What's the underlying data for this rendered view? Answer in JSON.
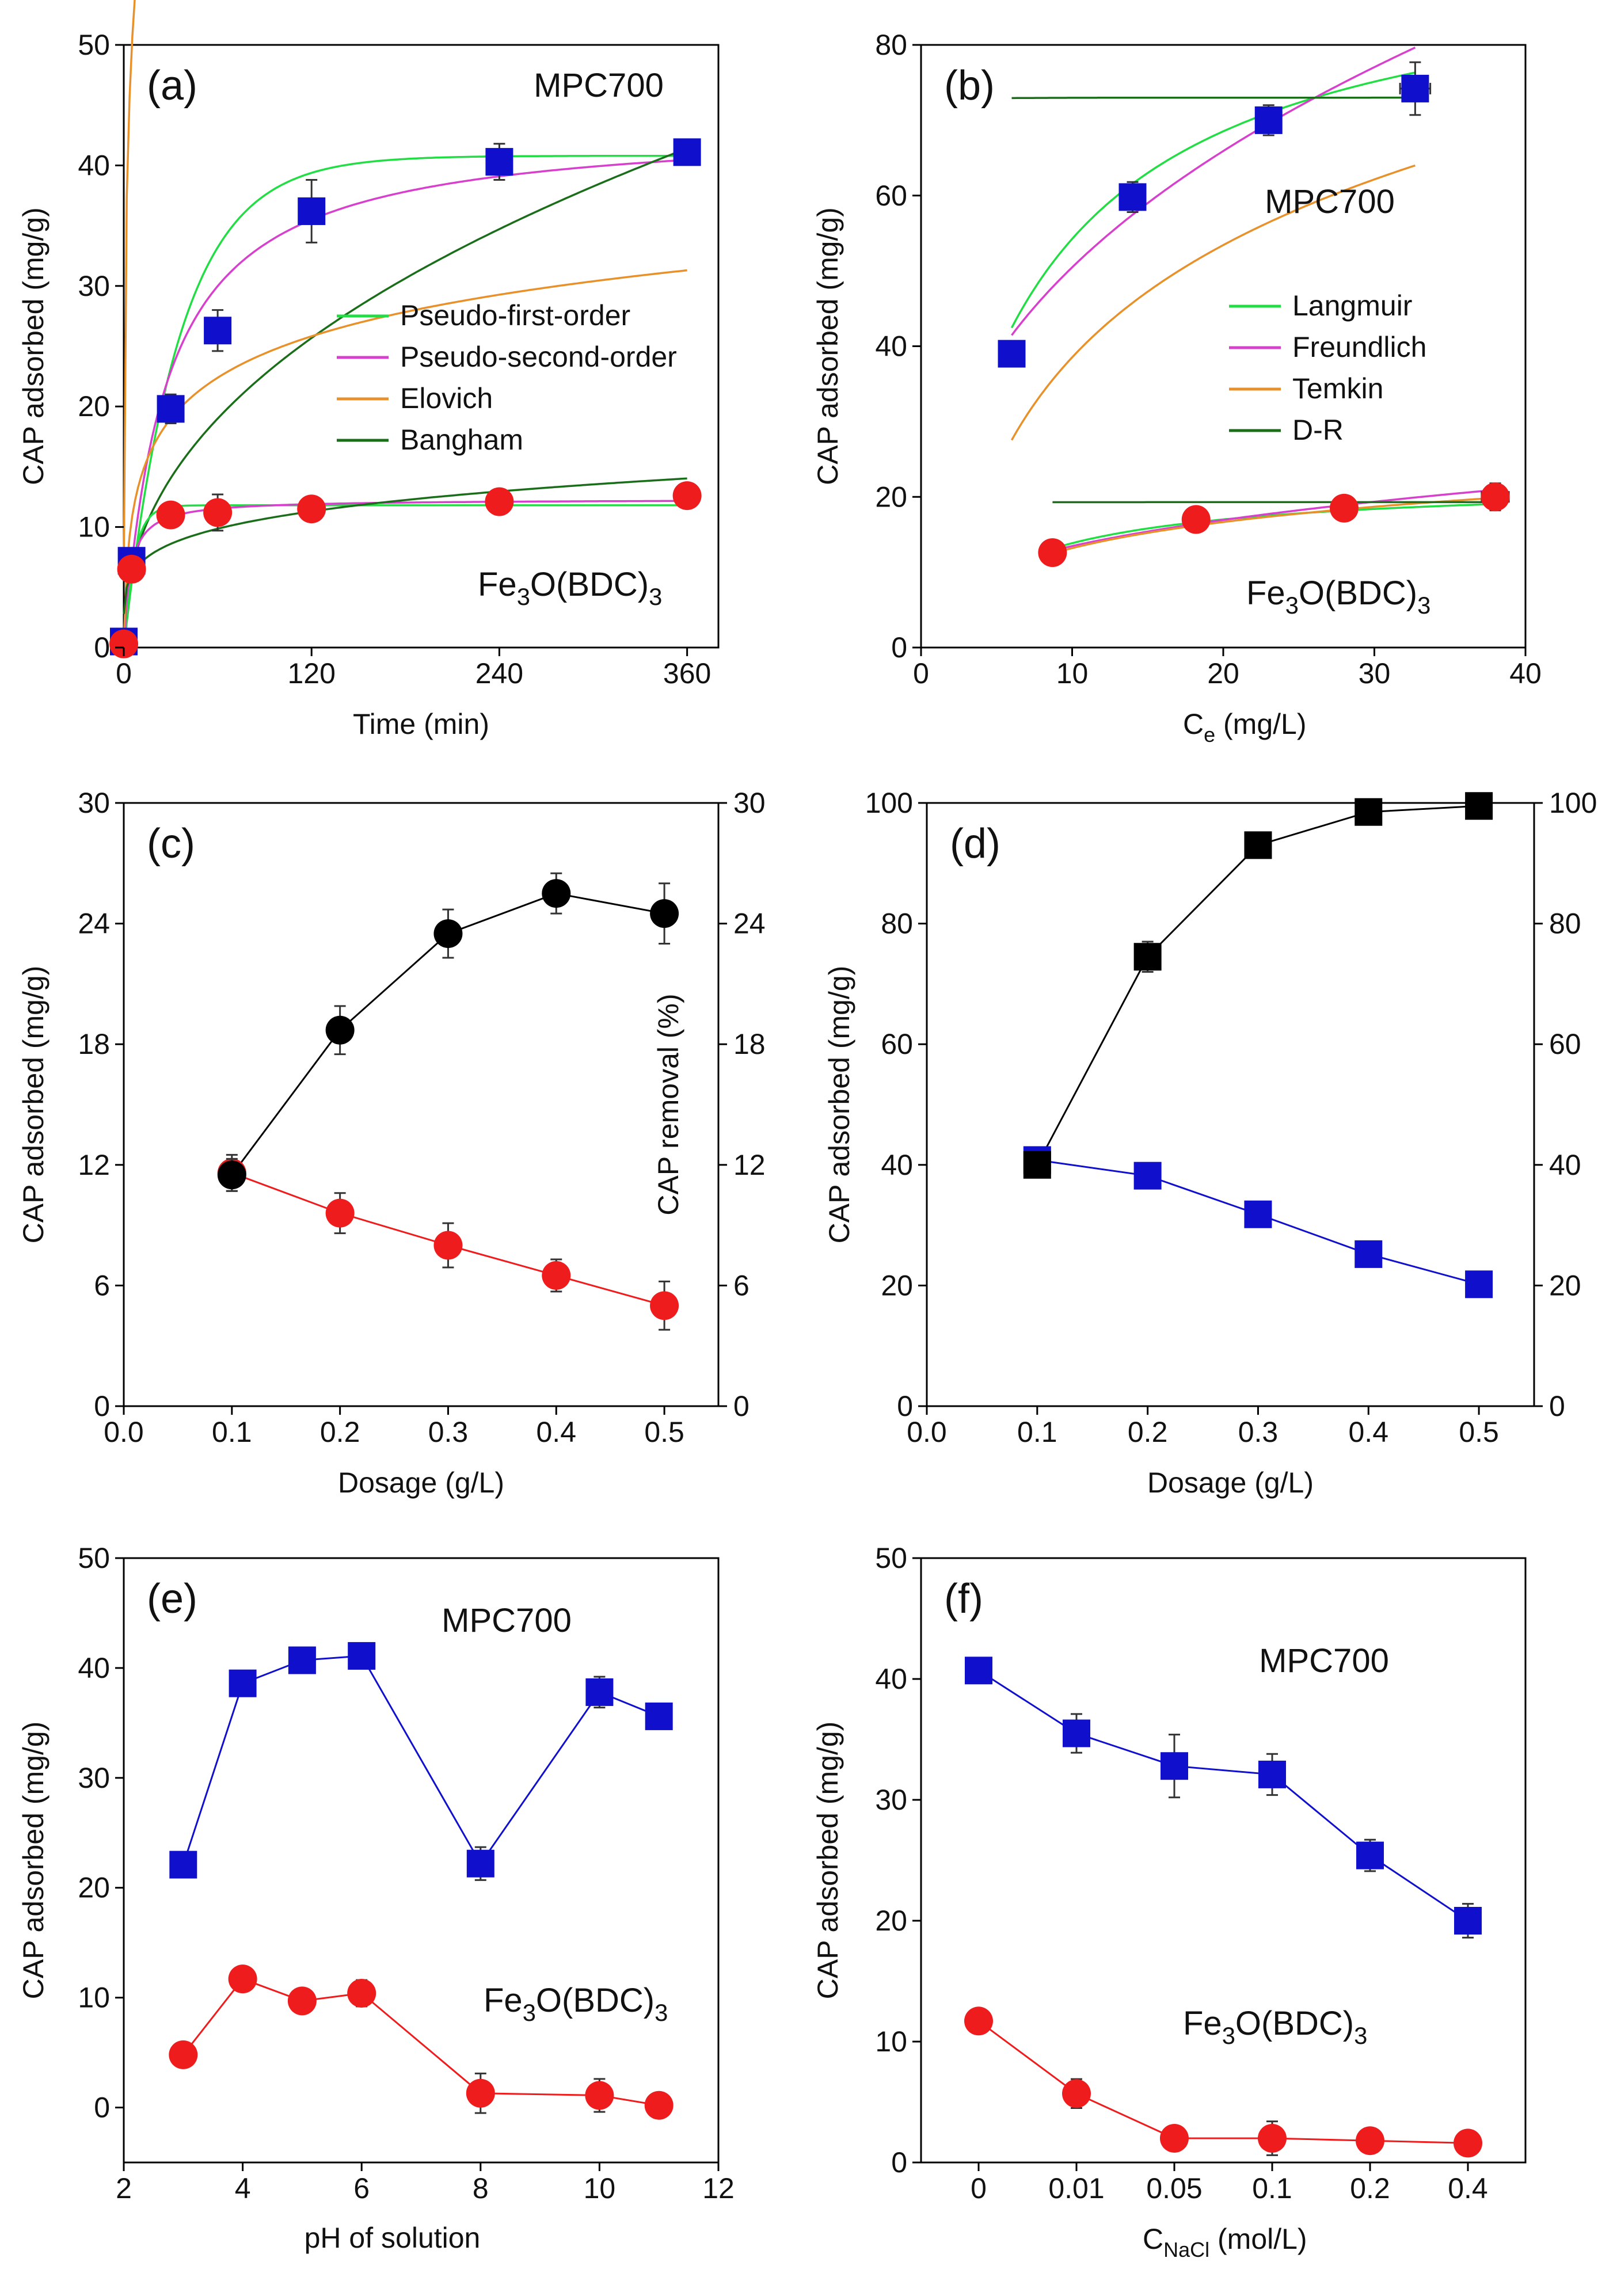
{
  "colors": {
    "red": "#ee1c1c",
    "blue": "#1010cc",
    "black": "#000000",
    "errorbar": "#333333",
    "pfo": "#22dd44",
    "pso": "#d640cc",
    "elovich": "#e8912a",
    "bangham": "#1a6e1a",
    "langmuir": "#22dd44",
    "freundlich": "#d640cc",
    "temkin": "#e8912a",
    "dr": "#1a6e1a"
  },
  "chart_data": [
    {
      "panel": "(a)",
      "type": "scatter",
      "xlabel": "Time (min)",
      "ylabel": "CAP adsorbed (mg/g)",
      "xlim": [
        0,
        380
      ],
      "ylim": [
        0,
        50
      ],
      "xticks": [
        0,
        120,
        240,
        360
      ],
      "yticks": [
        0,
        10,
        20,
        30,
        40,
        50
      ],
      "annotations": {
        "mpc": "MPC700",
        "fe_main": "Fe",
        "fe_sub1": "3",
        "fe_mid": "O(BDC)",
        "fe_sub2": "3"
      },
      "legend": [
        "Pseudo-first-order",
        "Pseudo-second-order",
        "Elovich",
        "Bangham"
      ],
      "series": [
        {
          "name": "MPC700",
          "marker": "square",
          "color": "blue",
          "x": [
            0,
            5,
            30,
            60,
            120,
            240,
            360
          ],
          "y": [
            0.5,
            7.2,
            19.8,
            26.3,
            36.2,
            40.3,
            41.1
          ],
          "err": [
            0.3,
            0.8,
            1.2,
            1.7,
            2.6,
            1.5,
            0.8
          ]
        },
        {
          "name": "Fe3O(BDC)3",
          "marker": "circle",
          "color": "red",
          "x": [
            0,
            5,
            30,
            60,
            120,
            240,
            360
          ],
          "y": [
            0.3,
            6.5,
            11.0,
            11.2,
            11.5,
            12.1,
            12.6
          ],
          "err": [
            0.2,
            0.6,
            1.0,
            1.5,
            0.8,
            0.6,
            0.5
          ]
        }
      ],
      "fits": [
        {
          "name": "Pseudo-first-order",
          "color": "pfo",
          "model": "pfo",
          "curve": "MPC700",
          "p": [
            40.8,
            0.028
          ]
        },
        {
          "name": "Pseudo-second-order",
          "color": "pso",
          "model": "pso",
          "curve": "MPC700",
          "p": [
            43.5,
            0.00085
          ]
        },
        {
          "name": "Elovich",
          "color": "elovich",
          "model": "elovich",
          "curve": "MPC700",
          "p": [
            13.0,
            8.8
          ]
        },
        {
          "name": "Bangham",
          "color": "bangham",
          "model": "bangham",
          "curve": "MPC700",
          "p": [
            3.2,
            0.435
          ]
        },
        {
          "name": "Pseudo-first-order",
          "color": "pfo",
          "model": "pfo",
          "curve": "Fe3O(BDC)3",
          "p": [
            11.8,
            0.15
          ]
        },
        {
          "name": "Pseudo-second-order",
          "color": "pso",
          "model": "pso",
          "curve": "Fe3O(BDC)3",
          "p": [
            12.3,
            0.02
          ]
        },
        {
          "name": "Elovich",
          "color": "elovich",
          "model": "elovich",
          "curve": "Fe3O(BDC)3",
          "p": [
            5.0,
            1.45
          ]
        },
        {
          "name": "Bangham",
          "color": "bangham",
          "model": "bangham",
          "curve": "Fe3O(BDC)3",
          "p": [
            4.4,
            0.197
          ]
        }
      ]
    },
    {
      "panel": "(b)",
      "type": "scatter",
      "xlabel_main": "C",
      "xlabel_sub": "e",
      "xlabel_rest": " (mg/L)",
      "ylabel": "CAP adsorbed (mg/g)",
      "xlim": [
        0,
        40
      ],
      "ylim": [
        0,
        80
      ],
      "xticks": [
        0,
        10,
        20,
        30,
        40
      ],
      "yticks": [
        0,
        20,
        40,
        60,
        80
      ],
      "annotations": {
        "mpc": "MPC700",
        "fe_main": "Fe",
        "fe_sub1": "3",
        "fe_mid": "O(BDC)",
        "fe_sub2": "3"
      },
      "legend": [
        "Langmuir",
        "Freundlich",
        "Temkin",
        "D-R"
      ],
      "series": [
        {
          "name": "MPC700",
          "marker": "square",
          "color": "blue",
          "x": [
            6.0,
            14.0,
            23.0,
            32.7
          ],
          "y": [
            39.0,
            59.8,
            70.0,
            74.2
          ],
          "err": [
            1.0,
            2.0,
            2.0,
            3.5
          ],
          "xerr": [
            0.6,
            0.8,
            0.7,
            1.0
          ]
        },
        {
          "name": "Fe3O(BDC)3",
          "marker": "circle",
          "color": "red",
          "x": [
            8.7,
            18.2,
            28.0,
            38.0
          ],
          "y": [
            12.6,
            17.0,
            18.5,
            20.0
          ],
          "err": [
            0.5,
            0.6,
            0.8,
            1.8
          ],
          "xerr": [
            0.5,
            0.5,
            0.6,
            0.9
          ]
        }
      ],
      "fits": [
        {
          "name": "Langmuir",
          "color": "langmuir",
          "model": "langmuir",
          "curve": "MPC700",
          "xr": [
            6.0,
            32.7
          ],
          "p": [
            93.0,
            0.14
          ]
        },
        {
          "name": "Freundlich",
          "color": "freundlich",
          "model": "freundlich",
          "curve": "MPC700",
          "xr": [
            6.0,
            32.7
          ],
          "p": [
            20.8,
            0.385
          ]
        },
        {
          "name": "Temkin",
          "color": "temkin",
          "model": "temkin",
          "curve": "MPC700",
          "xr": [
            6.0,
            32.7
          ],
          "p": [
            0.0,
            21.5,
            0.6
          ]
        },
        {
          "name": "D-R",
          "color": "dr",
          "model": "dr",
          "curve": "MPC700",
          "xr": [
            6.0,
            32.7
          ],
          "p": [
            73.0,
            0.09
          ]
        },
        {
          "name": "Langmuir",
          "color": "langmuir",
          "model": "langmuir",
          "curve": "Fe3O(BDC)3",
          "xr": [
            8.7,
            38.0
          ],
          "p": [
            22.0,
            0.17
          ]
        },
        {
          "name": "Freundlich",
          "color": "freundlich",
          "model": "freundlich",
          "curve": "Fe3O(BDC)3",
          "xr": [
            8.7,
            38.0
          ],
          "p": [
            6.3,
            0.33
          ]
        },
        {
          "name": "Temkin",
          "color": "temkin",
          "model": "temkin",
          "curve": "Fe3O(BDC)3",
          "xr": [
            8.7,
            38.0
          ],
          "p": [
            0.0,
            5.0,
            1.4
          ]
        },
        {
          "name": "D-R",
          "color": "dr",
          "model": "dr",
          "curve": "Fe3O(BDC)3",
          "xr": [
            8.7,
            38.0
          ],
          "p": [
            19.3,
            0.09
          ]
        }
      ]
    },
    {
      "panel": "(c)",
      "type": "line",
      "xlabel": "Dosage (g/L)",
      "ylabel": "CAP adsorbed (mg/g)",
      "y2label": "CAP removal (%)",
      "xlim": [
        0,
        0.55
      ],
      "ylim": [
        0,
        30
      ],
      "y2lim": [
        0,
        30
      ],
      "xticks": [
        0.0,
        0.1,
        0.2,
        0.3,
        0.4,
        0.5
      ],
      "yticks": [
        0,
        6,
        12,
        18,
        24,
        30
      ],
      "y2ticks": [
        0,
        6,
        12,
        18,
        24,
        30
      ],
      "series": [
        {
          "name": "Adsorbed",
          "marker": "circle",
          "color": "red",
          "axis": "left",
          "x": [
            0.1,
            0.2,
            0.3,
            0.4,
            0.5
          ],
          "y": [
            11.6,
            9.6,
            8.0,
            6.5,
            5.0
          ],
          "err": [
            0.9,
            1.0,
            1.1,
            0.8,
            1.2
          ]
        },
        {
          "name": "Removal",
          "marker": "circle",
          "color": "black",
          "axis": "right",
          "x": [
            0.1,
            0.2,
            0.3,
            0.4,
            0.5
          ],
          "y": [
            11.5,
            18.7,
            23.5,
            25.5,
            24.5
          ],
          "err": [
            0.8,
            1.2,
            1.2,
            1.0,
            1.5
          ]
        }
      ]
    },
    {
      "panel": "(d)",
      "type": "line",
      "xlabel": "Dosage (g/L)",
      "ylabel": "CAP adsorbed (mg/g)",
      "xlim": [
        0,
        0.55
      ],
      "ylim": [
        0,
        100
      ],
      "y2lim": [
        0,
        100
      ],
      "xticks": [
        0.0,
        0.1,
        0.2,
        0.3,
        0.4,
        0.5
      ],
      "yticks": [
        0,
        20,
        40,
        60,
        80,
        100
      ],
      "y2ticks": [
        0,
        20,
        40,
        60,
        80,
        100
      ],
      "series": [
        {
          "name": "Adsorbed",
          "marker": "square",
          "color": "blue",
          "axis": "left",
          "x": [
            0.1,
            0.2,
            0.3,
            0.4,
            0.5
          ],
          "y": [
            40.8,
            38.2,
            31.8,
            25.2,
            20.2
          ],
          "err": [
            0.8,
            2.0,
            1.0,
            0.6,
            0.4
          ]
        },
        {
          "name": "Removal",
          "marker": "square",
          "color": "black",
          "axis": "right",
          "x": [
            0.1,
            0.2,
            0.3,
            0.4,
            0.5
          ],
          "y": [
            40.0,
            74.5,
            93.0,
            98.5,
            99.5
          ],
          "err": [
            0.8,
            2.5,
            1.0,
            0.6,
            0.4
          ]
        }
      ]
    },
    {
      "panel": "(e)",
      "type": "line",
      "xlabel": "pH of solution",
      "ylabel": "CAP adsorbed (mg/g)",
      "xlim": [
        2,
        12
      ],
      "ylim": [
        -5,
        50
      ],
      "xticks": [
        2,
        4,
        6,
        8,
        10,
        12
      ],
      "yticks": [
        0,
        10,
        20,
        30,
        40,
        50
      ],
      "annotations": {
        "mpc": "MPC700",
        "fe_main": "Fe",
        "fe_sub1": "3",
        "fe_mid": "O(BDC)",
        "fe_sub2": "3"
      },
      "series": [
        {
          "name": "MPC700",
          "marker": "square",
          "color": "blue",
          "x": [
            3,
            4,
            5,
            6,
            8,
            10,
            11
          ],
          "y": [
            22.1,
            38.6,
            40.7,
            41.1,
            22.2,
            37.8,
            35.6
          ],
          "err": [
            0.5,
            0.6,
            0.6,
            1.0,
            1.5,
            1.4,
            1.0
          ]
        },
        {
          "name": "Fe3O(BDC)3",
          "marker": "circle",
          "color": "red",
          "x": [
            3,
            4,
            5,
            6,
            8,
            10,
            11
          ],
          "y": [
            4.8,
            11.7,
            9.7,
            10.4,
            1.3,
            1.1,
            0.2
          ],
          "err": [
            0.5,
            0.7,
            0.8,
            1.2,
            1.8,
            1.5,
            1.0
          ]
        }
      ]
    },
    {
      "panel": "(f)",
      "type": "line",
      "xlabel_main": "C",
      "xlabel_sub": "NaCl",
      "xlabel_rest": " (mol/L)",
      "ylabel": "CAP adsorbed (mg/g)",
      "ylim": [
        0,
        50
      ],
      "categories": [
        "0",
        "0.01",
        "0.05",
        "0.1",
        "0.2",
        "0.4"
      ],
      "yticks": [
        0,
        10,
        20,
        30,
        40,
        50
      ],
      "annotations": {
        "mpc": "MPC700",
        "fe_main": "Fe",
        "fe_sub1": "3",
        "fe_mid": "O(BDC)",
        "fe_sub2": "3"
      },
      "series": [
        {
          "name": "MPC700",
          "marker": "square",
          "color": "blue",
          "y": [
            40.7,
            35.5,
            32.8,
            32.1,
            25.4,
            20.0
          ],
          "err": [
            0.5,
            1.6,
            2.6,
            1.7,
            1.3,
            1.4
          ]
        },
        {
          "name": "Fe3O(BDC)3",
          "marker": "circle",
          "color": "red",
          "y": [
            11.7,
            5.7,
            2.0,
            2.0,
            1.8,
            1.6
          ],
          "err": [
            0.4,
            1.2,
            1.0,
            1.4,
            0.8,
            0.4
          ]
        }
      ]
    }
  ]
}
